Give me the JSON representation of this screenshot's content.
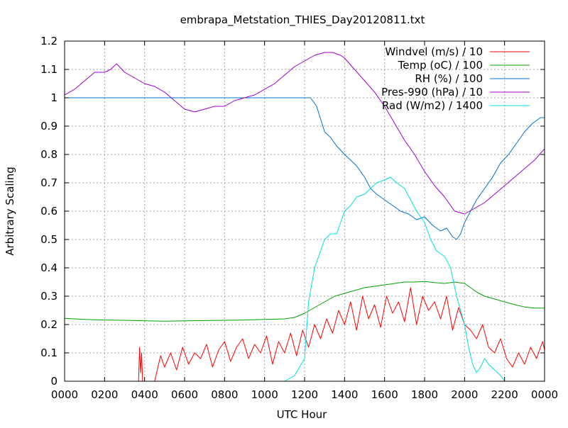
{
  "chart_data": {
    "type": "line",
    "title": "embrapa_Metstation_THIES_Day20120811.txt",
    "xlabel": "UTC Hour",
    "ylabel": "Arbitrary Scaling",
    "xlim": [
      0,
      24
    ],
    "ylim": [
      0,
      1.2
    ],
    "x_ticks": [
      {
        "v": 0,
        "label": "0000"
      },
      {
        "v": 2,
        "label": "0200"
      },
      {
        "v": 4,
        "label": "0400"
      },
      {
        "v": 6,
        "label": "0600"
      },
      {
        "v": 8,
        "label": "0800"
      },
      {
        "v": 10,
        "label": "1000"
      },
      {
        "v": 12,
        "label": "1200"
      },
      {
        "v": 14,
        "label": "1400"
      },
      {
        "v": 16,
        "label": "1600"
      },
      {
        "v": 18,
        "label": "1800"
      },
      {
        "v": 20,
        "label": "2000"
      },
      {
        "v": 22,
        "label": "2200"
      },
      {
        "v": 24,
        "label": "0000"
      }
    ],
    "y_ticks": [
      {
        "v": 0,
        "label": "0"
      },
      {
        "v": 0.1,
        "label": "0.1"
      },
      {
        "v": 0.2,
        "label": "0.2"
      },
      {
        "v": 0.3,
        "label": "0.3"
      },
      {
        "v": 0.4,
        "label": "0.4"
      },
      {
        "v": 0.5,
        "label": "0.5"
      },
      {
        "v": 0.6,
        "label": "0.6"
      },
      {
        "v": 0.7,
        "label": "0.7"
      },
      {
        "v": 0.8,
        "label": "0.8"
      },
      {
        "v": 0.9,
        "label": "0.9"
      },
      {
        "v": 1.0,
        "label": "1"
      },
      {
        "v": 1.1,
        "label": "1.1"
      },
      {
        "v": 1.2,
        "label": "1.2"
      }
    ],
    "grid": true,
    "legend_position": "top-right",
    "series": [
      {
        "name": "Windvel (m/s) / 10",
        "color": "#ff0000",
        "x": [
          0,
          3.7,
          3.75,
          3.8,
          3.85,
          3.9,
          4.0,
          4.5,
          4.8,
          5.0,
          5.3,
          5.6,
          5.9,
          6.2,
          6.5,
          6.8,
          7.1,
          7.4,
          7.7,
          8.0,
          8.3,
          8.6,
          8.9,
          9.2,
          9.5,
          9.8,
          10.1,
          10.4,
          10.7,
          11.0,
          11.3,
          11.6,
          11.9,
          12.2,
          12.5,
          12.8,
          13.1,
          13.4,
          13.7,
          14.0,
          14.3,
          14.6,
          14.9,
          15.2,
          15.5,
          15.8,
          16.1,
          16.4,
          16.7,
          17.0,
          17.3,
          17.6,
          17.9,
          18.2,
          18.5,
          18.8,
          19.1,
          19.4,
          19.7,
          20.0,
          20.3,
          20.6,
          20.9,
          21.2,
          21.5,
          21.8,
          22.1,
          22.4,
          22.7,
          23.0,
          23.3,
          23.6,
          23.9,
          24.0
        ],
        "y": [
          0,
          0,
          0.12,
          0.03,
          0.1,
          0,
          0,
          0,
          0.09,
          0.05,
          0.1,
          0.04,
          0.12,
          0.06,
          0.1,
          0.08,
          0.13,
          0.05,
          0.11,
          0.14,
          0.07,
          0.12,
          0.15,
          0.08,
          0.13,
          0.1,
          0.16,
          0.06,
          0.14,
          0.1,
          0.17,
          0.09,
          0.18,
          0.12,
          0.2,
          0.15,
          0.22,
          0.17,
          0.25,
          0.2,
          0.28,
          0.18,
          0.3,
          0.22,
          0.27,
          0.19,
          0.3,
          0.24,
          0.28,
          0.21,
          0.33,
          0.2,
          0.3,
          0.25,
          0.28,
          0.22,
          0.3,
          0.18,
          0.26,
          0.2,
          0.18,
          0.15,
          0.2,
          0.12,
          0.1,
          0.15,
          0.08,
          0.05,
          0.1,
          0.06,
          0.12,
          0.08,
          0.14,
          0.11
        ]
      },
      {
        "name": "Temp (oC) / 100",
        "color": "#00a000",
        "x": [
          0,
          1,
          2,
          3,
          4,
          5,
          6,
          7,
          8,
          9,
          10,
          11,
          11.5,
          12,
          12.5,
          13,
          13.5,
          14,
          14.5,
          15,
          15.5,
          16,
          16.5,
          17,
          17.5,
          18,
          18.5,
          19,
          19.5,
          20,
          20.3,
          20.6,
          21,
          21.5,
          22,
          22.5,
          23,
          23.5,
          24
        ],
        "y": [
          0.222,
          0.218,
          0.216,
          0.215,
          0.213,
          0.212,
          0.213,
          0.214,
          0.215,
          0.216,
          0.218,
          0.22,
          0.225,
          0.24,
          0.26,
          0.28,
          0.3,
          0.31,
          0.32,
          0.33,
          0.335,
          0.34,
          0.345,
          0.35,
          0.35,
          0.352,
          0.348,
          0.345,
          0.35,
          0.345,
          0.33,
          0.315,
          0.3,
          0.29,
          0.28,
          0.27,
          0.262,
          0.258,
          0.258
        ]
      },
      {
        "name": "RH (%) / 100",
        "color": "#0070d0",
        "x": [
          0,
          2,
          4,
          6,
          8,
          10,
          12,
          12.3,
          12.6,
          13,
          13.3,
          13.6,
          14,
          14.3,
          14.6,
          15,
          15.3,
          15.6,
          16,
          16.4,
          16.8,
          17.2,
          17.6,
          18,
          18.4,
          18.8,
          19.1,
          19.4,
          19.6,
          19.8,
          20,
          20.3,
          20.6,
          21,
          21.4,
          21.8,
          22.2,
          22.6,
          23,
          23.4,
          23.8,
          24
        ],
        "y": [
          1,
          1,
          1,
          1,
          1,
          1,
          1,
          1,
          0.97,
          0.88,
          0.86,
          0.83,
          0.8,
          0.78,
          0.76,
          0.72,
          0.68,
          0.66,
          0.64,
          0.62,
          0.6,
          0.59,
          0.57,
          0.58,
          0.55,
          0.53,
          0.54,
          0.51,
          0.5,
          0.52,
          0.56,
          0.6,
          0.64,
          0.68,
          0.72,
          0.77,
          0.8,
          0.84,
          0.88,
          0.91,
          0.93,
          0.93
        ]
      },
      {
        "name": "Pres-990 (hPa) / 10",
        "color": "#a000d0",
        "x": [
          0,
          0.5,
          1,
          1.5,
          2,
          2.3,
          2.6,
          3,
          3.5,
          4,
          4.5,
          5,
          5.5,
          6,
          6.5,
          7,
          7.5,
          8,
          8.5,
          9,
          9.5,
          10,
          10.5,
          11,
          11.5,
          12,
          12.5,
          13,
          13.4,
          13.8,
          14,
          14.5,
          15,
          15.5,
          16,
          16.5,
          17,
          17.5,
          18,
          18.5,
          19,
          19.5,
          20,
          20.5,
          21,
          21.5,
          22,
          22.5,
          23,
          23.5,
          24
        ],
        "y": [
          1.01,
          1.03,
          1.06,
          1.09,
          1.09,
          1.1,
          1.12,
          1.09,
          1.07,
          1.05,
          1.04,
          1.02,
          0.99,
          0.96,
          0.95,
          0.96,
          0.97,
          0.97,
          0.99,
          1.0,
          1.01,
          1.03,
          1.05,
          1.08,
          1.11,
          1.13,
          1.15,
          1.16,
          1.16,
          1.15,
          1.14,
          1.1,
          1.06,
          1.02,
          0.97,
          0.91,
          0.85,
          0.8,
          0.74,
          0.69,
          0.65,
          0.6,
          0.59,
          0.61,
          0.63,
          0.66,
          0.69,
          0.72,
          0.75,
          0.78,
          0.82
        ]
      },
      {
        "name": "Rad (W/m2) / 1400",
        "color": "#00e0e0",
        "x": [
          0,
          10,
          11,
          11.5,
          12,
          12.2,
          12.5,
          12.8,
          13,
          13.3,
          13.6,
          14,
          14.3,
          14.6,
          15,
          15.3,
          15.6,
          16,
          16.3,
          16.6,
          17,
          17.3,
          17.6,
          18,
          18.3,
          18.6,
          19,
          19.3,
          19.6,
          20,
          20.2,
          20.4,
          20.6,
          20.8,
          21,
          21.2,
          21.5,
          21.8,
          22,
          22.5,
          23,
          24
        ],
        "y": [
          0,
          0,
          0,
          0.02,
          0.08,
          0.28,
          0.4,
          0.46,
          0.5,
          0.52,
          0.52,
          0.6,
          0.62,
          0.65,
          0.66,
          0.68,
          0.7,
          0.71,
          0.72,
          0.7,
          0.68,
          0.64,
          0.6,
          0.56,
          0.5,
          0.46,
          0.44,
          0.4,
          0.3,
          0.2,
          0.12,
          0.06,
          0.03,
          0.05,
          0.08,
          0.06,
          0.04,
          0.02,
          0,
          0,
          0,
          0
        ]
      }
    ]
  }
}
